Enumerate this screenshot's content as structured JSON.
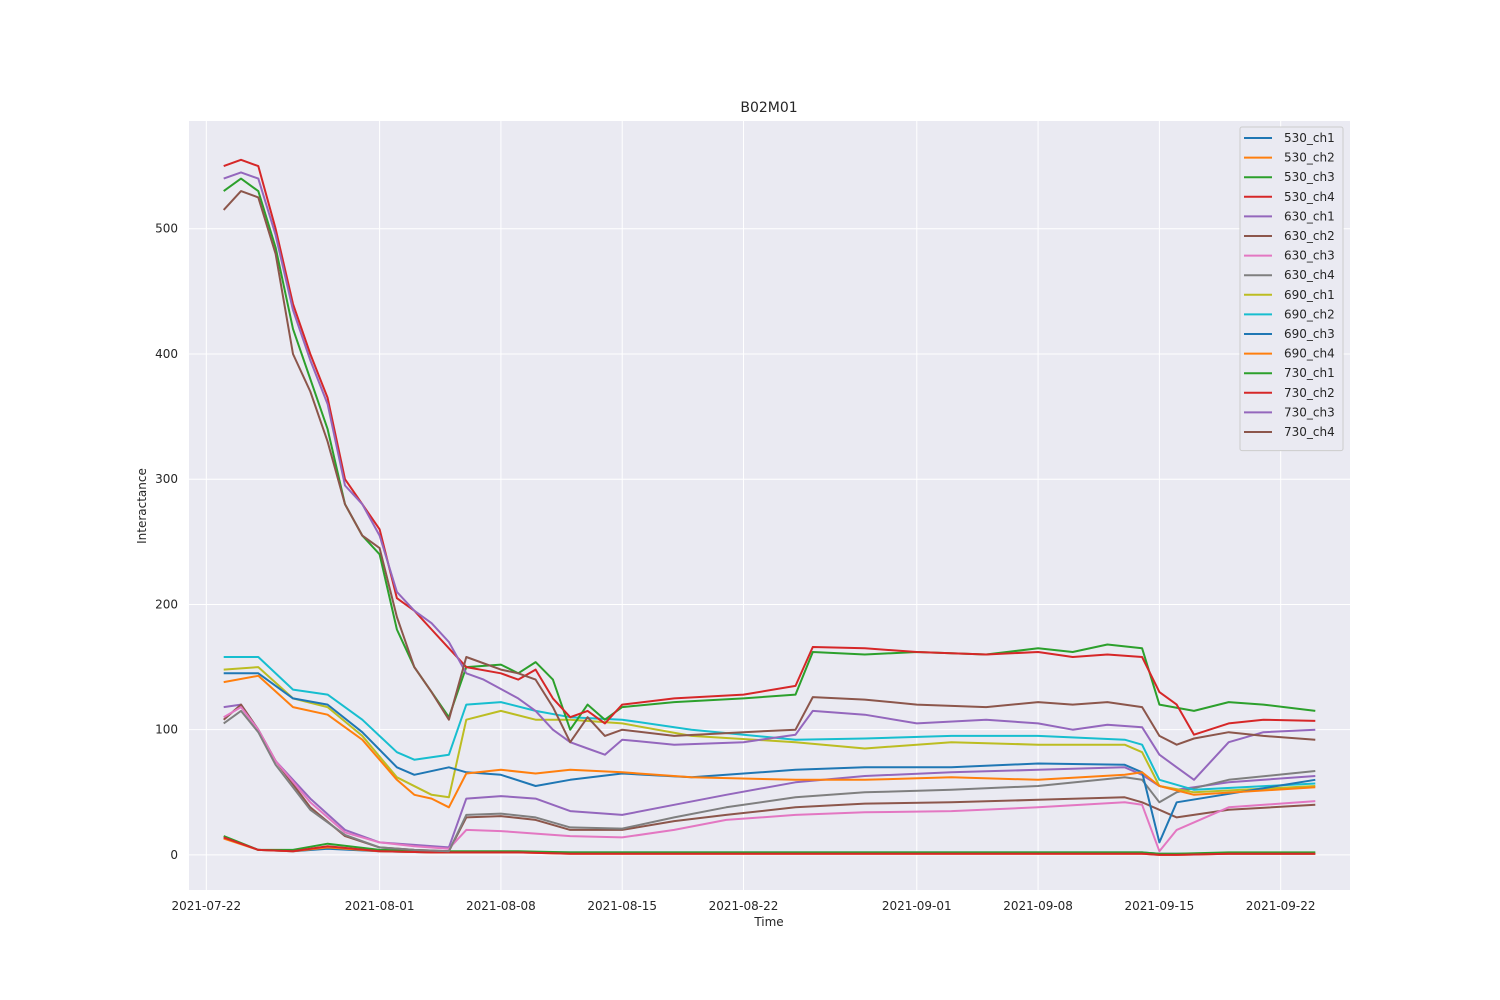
{
  "chart_data": {
    "type": "line",
    "title": "B02M01",
    "xlabel": "Time",
    "ylabel": "Interactance",
    "x_ticks": [
      "2021-07-22",
      "2021-08-01",
      "2021-08-08",
      "2021-08-15",
      "2021-08-22",
      "2021-09-01",
      "2021-09-08",
      "2021-09-15",
      "2021-09-22"
    ],
    "y_ticks": [
      "0",
      "100",
      "200",
      "300",
      "400",
      "500"
    ],
    "xlim": [
      "2021-07-21",
      "2021-09-26"
    ],
    "ylim": [
      -28,
      586
    ],
    "grid": true,
    "legend_position": "top-right",
    "background": "#eaeaf2",
    "series": [
      {
        "name": "530_ch1",
        "color": "#1f77b4",
        "x": [
          "2021-07-23",
          "2021-07-25",
          "2021-07-27",
          "2021-07-29",
          "2021-08-01",
          "2021-08-04",
          "2021-08-06",
          "2021-08-09",
          "2021-08-12",
          "2021-08-15",
          "2021-08-19",
          "2021-08-25",
          "2021-09-01",
          "2021-09-08",
          "2021-09-12",
          "2021-09-14",
          "2021-09-15",
          "2021-09-16",
          "2021-09-19",
          "2021-09-24"
        ],
        "y": [
          14,
          4,
          3,
          5,
          3,
          2,
          2,
          2,
          2,
          2,
          2,
          2,
          2,
          2,
          2,
          2,
          1,
          1,
          1,
          1
        ]
      },
      {
        "name": "530_ch2",
        "color": "#ff7f0e",
        "x": [
          "2021-07-23",
          "2021-07-25",
          "2021-07-27",
          "2021-07-29",
          "2021-08-01",
          "2021-08-04",
          "2021-08-06",
          "2021-08-09",
          "2021-08-12",
          "2021-08-15",
          "2021-08-19",
          "2021-08-25",
          "2021-09-01",
          "2021-09-08",
          "2021-09-12",
          "2021-09-14",
          "2021-09-15",
          "2021-09-16",
          "2021-09-19",
          "2021-09-24"
        ],
        "y": [
          13,
          4,
          3,
          6,
          3,
          2,
          2,
          2,
          1,
          1,
          1,
          1,
          1,
          1,
          1,
          1,
          0,
          0,
          1,
          1
        ]
      },
      {
        "name": "530_ch3",
        "color": "#2ca02c",
        "x": [
          "2021-07-23",
          "2021-07-25",
          "2021-07-27",
          "2021-07-29",
          "2021-08-01",
          "2021-08-04",
          "2021-08-06",
          "2021-08-09",
          "2021-08-12",
          "2021-08-15",
          "2021-08-19",
          "2021-08-25",
          "2021-09-01",
          "2021-09-08",
          "2021-09-12",
          "2021-09-14",
          "2021-09-15",
          "2021-09-16",
          "2021-09-19",
          "2021-09-24"
        ],
        "y": [
          15,
          4,
          4,
          9,
          4,
          3,
          3,
          3,
          2,
          2,
          2,
          2,
          2,
          2,
          2,
          2,
          1,
          1,
          2,
          2
        ]
      },
      {
        "name": "530_ch4",
        "color": "#d62728",
        "x": [
          "2021-07-23",
          "2021-07-25",
          "2021-07-27",
          "2021-07-29",
          "2021-08-01",
          "2021-08-04",
          "2021-08-06",
          "2021-08-09",
          "2021-08-12",
          "2021-08-15",
          "2021-08-19",
          "2021-08-25",
          "2021-09-01",
          "2021-09-08",
          "2021-09-12",
          "2021-09-14",
          "2021-09-15",
          "2021-09-16",
          "2021-09-19",
          "2021-09-24"
        ],
        "y": [
          14,
          4,
          3,
          7,
          3,
          2,
          2,
          2,
          1,
          1,
          1,
          1,
          1,
          1,
          1,
          1,
          0,
          0,
          1,
          1
        ]
      },
      {
        "name": "630_ch1",
        "color": "#9467bd",
        "x": [
          "2021-07-23",
          "2021-07-24",
          "2021-07-25",
          "2021-07-26",
          "2021-07-28",
          "2021-07-30",
          "2021-08-01",
          "2021-08-03",
          "2021-08-05",
          "2021-08-06",
          "2021-08-08",
          "2021-08-10",
          "2021-08-12",
          "2021-08-15",
          "2021-08-18",
          "2021-08-21",
          "2021-08-25",
          "2021-08-29",
          "2021-09-03",
          "2021-09-08",
          "2021-09-13",
          "2021-09-14",
          "2021-09-15",
          "2021-09-16",
          "2021-09-19",
          "2021-09-24"
        ],
        "y": [
          118,
          120,
          100,
          75,
          45,
          20,
          10,
          8,
          6,
          45,
          47,
          45,
          35,
          32,
          40,
          48,
          58,
          63,
          66,
          68,
          70,
          64,
          55,
          52,
          58,
          63
        ]
      },
      {
        "name": "630_ch2",
        "color": "#8c564b",
        "x": [
          "2021-07-23",
          "2021-07-24",
          "2021-07-25",
          "2021-07-26",
          "2021-07-28",
          "2021-07-30",
          "2021-08-01",
          "2021-08-03",
          "2021-08-05",
          "2021-08-06",
          "2021-08-08",
          "2021-08-10",
          "2021-08-12",
          "2021-08-15",
          "2021-08-18",
          "2021-08-21",
          "2021-08-25",
          "2021-08-29",
          "2021-09-03",
          "2021-09-08",
          "2021-09-13",
          "2021-09-14",
          "2021-09-15",
          "2021-09-16",
          "2021-09-19",
          "2021-09-24"
        ],
        "y": [
          108,
          120,
          100,
          75,
          38,
          15,
          6,
          4,
          3,
          30,
          31,
          28,
          20,
          20,
          27,
          32,
          38,
          41,
          42,
          44,
          46,
          42,
          36,
          30,
          36,
          40
        ]
      },
      {
        "name": "630_ch3",
        "color": "#e377c2",
        "x": [
          "2021-07-23",
          "2021-07-24",
          "2021-07-25",
          "2021-07-26",
          "2021-07-28",
          "2021-07-30",
          "2021-08-01",
          "2021-08-03",
          "2021-08-05",
          "2021-08-06",
          "2021-08-08",
          "2021-08-10",
          "2021-08-12",
          "2021-08-15",
          "2021-08-18",
          "2021-08-21",
          "2021-08-25",
          "2021-08-29",
          "2021-09-03",
          "2021-09-08",
          "2021-09-13",
          "2021-09-14",
          "2021-09-15",
          "2021-09-16",
          "2021-09-19",
          "2021-09-24"
        ],
        "y": [
          110,
          118,
          100,
          75,
          42,
          18,
          10,
          7,
          5,
          20,
          19,
          17,
          15,
          14,
          20,
          28,
          32,
          34,
          35,
          38,
          42,
          40,
          3,
          20,
          38,
          43
        ]
      },
      {
        "name": "630_ch4",
        "color": "#7f7f7f",
        "x": [
          "2021-07-23",
          "2021-07-24",
          "2021-07-25",
          "2021-07-26",
          "2021-07-28",
          "2021-07-30",
          "2021-08-01",
          "2021-08-03",
          "2021-08-05",
          "2021-08-06",
          "2021-08-08",
          "2021-08-10",
          "2021-08-12",
          "2021-08-15",
          "2021-08-18",
          "2021-08-21",
          "2021-08-25",
          "2021-08-29",
          "2021-09-03",
          "2021-09-08",
          "2021-09-13",
          "2021-09-14",
          "2021-09-15",
          "2021-09-16",
          "2021-09-19",
          "2021-09-24"
        ],
        "y": [
          105,
          115,
          98,
          72,
          36,
          16,
          6,
          4,
          3,
          32,
          33,
          30,
          22,
          21,
          30,
          38,
          46,
          50,
          52,
          55,
          62,
          60,
          42,
          50,
          60,
          67
        ]
      },
      {
        "name": "690_ch1",
        "color": "#bcbd22",
        "x": [
          "2021-07-23",
          "2021-07-25",
          "2021-07-27",
          "2021-07-29",
          "2021-07-31",
          "2021-08-02",
          "2021-08-04",
          "2021-08-05",
          "2021-08-06",
          "2021-08-08",
          "2021-08-10",
          "2021-08-12",
          "2021-08-15",
          "2021-08-19",
          "2021-08-25",
          "2021-08-29",
          "2021-09-03",
          "2021-09-08",
          "2021-09-13",
          "2021-09-14",
          "2021-09-15",
          "2021-09-17",
          "2021-09-24"
        ],
        "y": [
          148,
          150,
          125,
          118,
          95,
          62,
          48,
          46,
          108,
          115,
          108,
          108,
          105,
          95,
          90,
          85,
          90,
          88,
          88,
          82,
          55,
          50,
          55
        ]
      },
      {
        "name": "690_ch2",
        "color": "#17becf",
        "x": [
          "2021-07-23",
          "2021-07-25",
          "2021-07-27",
          "2021-07-29",
          "2021-07-31",
          "2021-08-02",
          "2021-08-03",
          "2021-08-05",
          "2021-08-06",
          "2021-08-08",
          "2021-08-10",
          "2021-08-12",
          "2021-08-15",
          "2021-08-19",
          "2021-08-25",
          "2021-08-29",
          "2021-09-03",
          "2021-09-08",
          "2021-09-13",
          "2021-09-14",
          "2021-09-15",
          "2021-09-17",
          "2021-09-24"
        ],
        "y": [
          158,
          158,
          132,
          128,
          108,
          82,
          76,
          80,
          120,
          122,
          115,
          110,
          108,
          100,
          92,
          93,
          95,
          95,
          92,
          88,
          60,
          52,
          57
        ]
      },
      {
        "name": "690_ch3",
        "color": "#1f77b4",
        "x": [
          "2021-07-23",
          "2021-07-25",
          "2021-07-27",
          "2021-07-29",
          "2021-07-31",
          "2021-08-02",
          "2021-08-03",
          "2021-08-05",
          "2021-08-06",
          "2021-08-08",
          "2021-08-10",
          "2021-08-12",
          "2021-08-15",
          "2021-08-19",
          "2021-08-25",
          "2021-08-29",
          "2021-09-03",
          "2021-09-08",
          "2021-09-13",
          "2021-09-14",
          "2021-09-15",
          "2021-09-16",
          "2021-09-24"
        ],
        "y": [
          145,
          145,
          125,
          120,
          98,
          70,
          64,
          70,
          66,
          64,
          55,
          60,
          65,
          62,
          68,
          70,
          70,
          73,
          72,
          66,
          10,
          42,
          60
        ]
      },
      {
        "name": "690_ch4",
        "color": "#ff7f0e",
        "x": [
          "2021-07-23",
          "2021-07-25",
          "2021-07-27",
          "2021-07-29",
          "2021-07-31",
          "2021-08-02",
          "2021-08-03",
          "2021-08-04",
          "2021-08-05",
          "2021-08-06",
          "2021-08-08",
          "2021-08-10",
          "2021-08-12",
          "2021-08-15",
          "2021-08-19",
          "2021-08-25",
          "2021-08-29",
          "2021-09-03",
          "2021-09-08",
          "2021-09-13",
          "2021-09-14",
          "2021-09-15",
          "2021-09-17",
          "2021-09-24"
        ],
        "y": [
          138,
          143,
          118,
          112,
          92,
          60,
          48,
          45,
          38,
          65,
          68,
          65,
          68,
          66,
          62,
          60,
          60,
          62,
          60,
          64,
          66,
          55,
          48,
          54
        ]
      },
      {
        "name": "730_ch1",
        "color": "#2ca02c",
        "x": [
          "2021-07-23",
          "2021-07-24",
          "2021-07-25",
          "2021-07-26",
          "2021-07-27",
          "2021-07-28",
          "2021-07-29",
          "2021-07-30",
          "2021-07-31",
          "2021-08-01",
          "2021-08-02",
          "2021-08-03",
          "2021-08-04",
          "2021-08-05",
          "2021-08-06",
          "2021-08-08",
          "2021-08-09",
          "2021-08-10",
          "2021-08-11",
          "2021-08-12",
          "2021-08-13",
          "2021-08-14",
          "2021-08-15",
          "2021-08-18",
          "2021-08-22",
          "2021-08-25",
          "2021-08-26",
          "2021-08-29",
          "2021-09-01",
          "2021-09-05",
          "2021-09-08",
          "2021-09-10",
          "2021-09-12",
          "2021-09-14",
          "2021-09-15",
          "2021-09-17",
          "2021-09-19",
          "2021-09-21",
          "2021-09-24"
        ],
        "y": [
          530,
          540,
          530,
          485,
          420,
          380,
          340,
          280,
          255,
          240,
          180,
          150,
          130,
          110,
          150,
          152,
          145,
          154,
          140,
          100,
          120,
          108,
          118,
          122,
          125,
          128,
          162,
          160,
          162,
          160,
          165,
          162,
          168,
          165,
          120,
          115,
          122,
          120,
          115
        ]
      },
      {
        "name": "730_ch2",
        "color": "#d62728",
        "x": [
          "2021-07-23",
          "2021-07-24",
          "2021-07-25",
          "2021-07-26",
          "2021-07-27",
          "2021-07-28",
          "2021-07-29",
          "2021-07-30",
          "2021-07-31",
          "2021-08-01",
          "2021-08-02",
          "2021-08-03",
          "2021-08-04",
          "2021-08-05",
          "2021-08-06",
          "2021-08-08",
          "2021-08-09",
          "2021-08-10",
          "2021-08-11",
          "2021-08-12",
          "2021-08-13",
          "2021-08-14",
          "2021-08-15",
          "2021-08-18",
          "2021-08-22",
          "2021-08-25",
          "2021-08-26",
          "2021-08-29",
          "2021-09-01",
          "2021-09-05",
          "2021-09-08",
          "2021-09-10",
          "2021-09-12",
          "2021-09-14",
          "2021-09-15",
          "2021-09-16",
          "2021-09-17",
          "2021-09-19",
          "2021-09-21",
          "2021-09-24"
        ],
        "y": [
          550,
          555,
          550,
          500,
          440,
          400,
          365,
          300,
          280,
          260,
          205,
          195,
          180,
          165,
          150,
          145,
          140,
          148,
          125,
          110,
          115,
          105,
          120,
          125,
          128,
          135,
          166,
          165,
          162,
          160,
          162,
          158,
          160,
          158,
          130,
          120,
          96,
          105,
          108,
          107
        ]
      },
      {
        "name": "730_ch3",
        "color": "#9467bd",
        "x": [
          "2021-07-23",
          "2021-07-24",
          "2021-07-25",
          "2021-07-26",
          "2021-07-27",
          "2021-07-28",
          "2021-07-29",
          "2021-07-30",
          "2021-07-31",
          "2021-08-01",
          "2021-08-02",
          "2021-08-03",
          "2021-08-04",
          "2021-08-05",
          "2021-08-06",
          "2021-08-07",
          "2021-08-09",
          "2021-08-10",
          "2021-08-11",
          "2021-08-12",
          "2021-08-13",
          "2021-08-14",
          "2021-08-15",
          "2021-08-18",
          "2021-08-22",
          "2021-08-25",
          "2021-08-26",
          "2021-08-29",
          "2021-09-01",
          "2021-09-05",
          "2021-09-08",
          "2021-09-10",
          "2021-09-12",
          "2021-09-14",
          "2021-09-15",
          "2021-09-16",
          "2021-09-17",
          "2021-09-19",
          "2021-09-21",
          "2021-09-24"
        ],
        "y": [
          540,
          545,
          540,
          495,
          435,
          395,
          360,
          295,
          280,
          255,
          210,
          195,
          185,
          170,
          145,
          140,
          125,
          115,
          100,
          90,
          85,
          80,
          92,
          88,
          90,
          96,
          115,
          112,
          105,
          108,
          105,
          100,
          104,
          102,
          80,
          70,
          60,
          90,
          98,
          100
        ]
      },
      {
        "name": "730_ch4",
        "color": "#8c564b",
        "x": [
          "2021-07-23",
          "2021-07-24",
          "2021-07-25",
          "2021-07-26",
          "2021-07-27",
          "2021-07-28",
          "2021-07-29",
          "2021-07-30",
          "2021-07-31",
          "2021-08-01",
          "2021-08-02",
          "2021-08-03",
          "2021-08-04",
          "2021-08-05",
          "2021-08-06",
          "2021-08-08",
          "2021-08-09",
          "2021-08-10",
          "2021-08-11",
          "2021-08-12",
          "2021-08-13",
          "2021-08-14",
          "2021-08-15",
          "2021-08-18",
          "2021-08-22",
          "2021-08-25",
          "2021-08-26",
          "2021-08-29",
          "2021-09-01",
          "2021-09-05",
          "2021-09-08",
          "2021-09-10",
          "2021-09-12",
          "2021-09-14",
          "2021-09-15",
          "2021-09-16",
          "2021-09-17",
          "2021-09-19",
          "2021-09-21",
          "2021-09-24"
        ],
        "y": [
          515,
          530,
          525,
          480,
          400,
          370,
          330,
          280,
          255,
          245,
          190,
          150,
          130,
          108,
          158,
          148,
          145,
          140,
          118,
          90,
          110,
          95,
          100,
          95,
          98,
          100,
          126,
          124,
          120,
          118,
          122,
          120,
          122,
          118,
          95,
          88,
          93,
          98,
          95,
          92
        ]
      }
    ]
  }
}
